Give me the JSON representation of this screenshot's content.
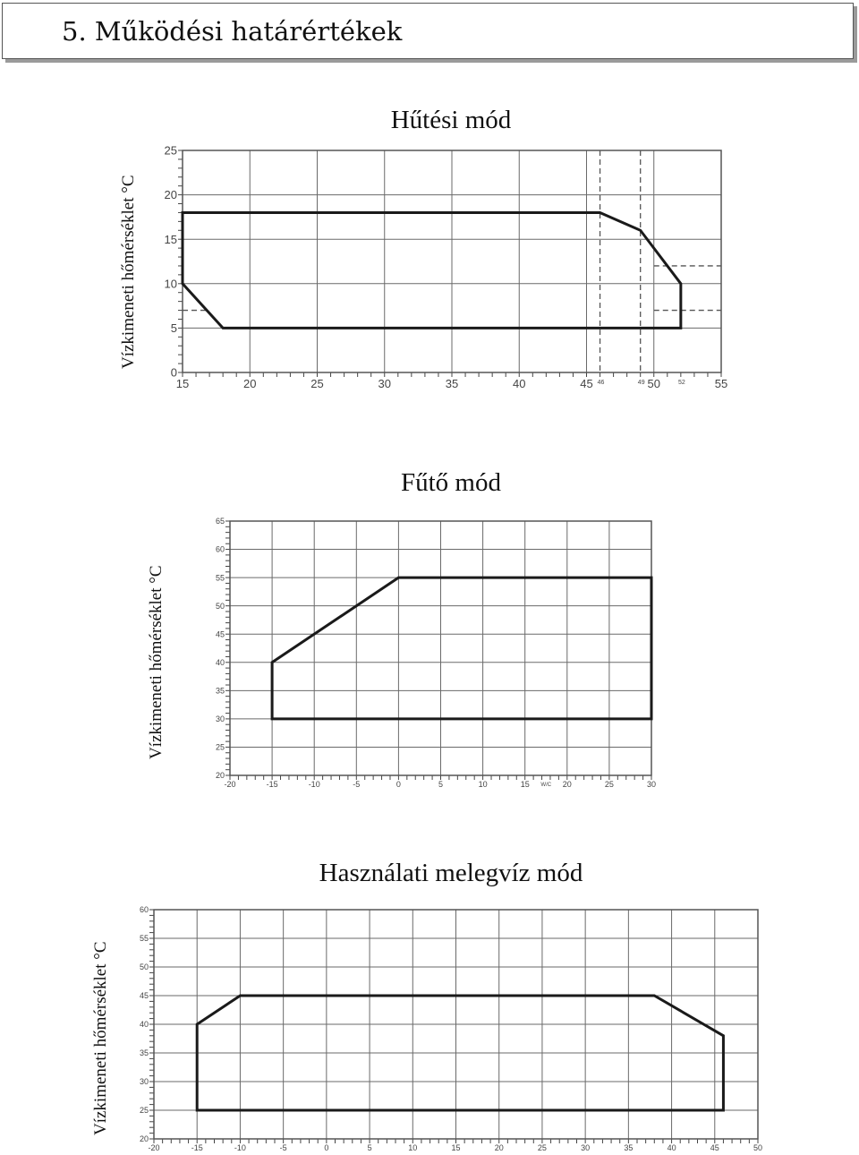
{
  "header": {
    "title": "5. Működési határértékek"
  },
  "chart_data": [
    {
      "type": "area",
      "title": "Hűtési mód",
      "ylabel": "Vízkimeneti hőmérséklet °C",
      "xlabel": "",
      "xlim": [
        15,
        55
      ],
      "ylim": [
        0,
        25
      ],
      "x_ticks": [
        15,
        20,
        25,
        30,
        35,
        40,
        45,
        50,
        55
      ],
      "y_ticks": [
        0,
        5,
        10,
        15,
        20,
        25
      ],
      "x_minor_labels": [
        46,
        49,
        52
      ],
      "grid": true,
      "polygon": [
        [
          15,
          18
        ],
        [
          46,
          18
        ],
        [
          49,
          16
        ],
        [
          52,
          10
        ],
        [
          52,
          5
        ],
        [
          18,
          5
        ],
        [
          15,
          10
        ]
      ],
      "dashed_vertical": [
        46,
        49
      ],
      "dashed_horizontal": [
        {
          "y": 12,
          "x_from": 50,
          "x_to": 55
        },
        {
          "y": 7,
          "x_from": 50,
          "x_to": 55
        },
        {
          "y": 7,
          "x_from": 15,
          "x_to": 17
        }
      ]
    },
    {
      "type": "area",
      "title": "Fűtő mód",
      "ylabel": "Vízkimeneti hőmérséklet °C",
      "xlabel": "",
      "xlim": [
        -20,
        30
      ],
      "ylim": [
        20,
        65
      ],
      "x_ticks": [
        -20,
        -15,
        -10,
        -5,
        0,
        5,
        10,
        15,
        20,
        25,
        30
      ],
      "y_ticks": [
        20,
        25,
        30,
        35,
        40,
        45,
        50,
        55,
        60,
        65
      ],
      "x_unit_label": "W/C",
      "grid": true,
      "polygon": [
        [
          -15,
          40
        ],
        [
          0,
          55
        ],
        [
          30,
          55
        ],
        [
          30,
          30
        ],
        [
          -15,
          30
        ]
      ]
    },
    {
      "type": "area",
      "title": "Használati melegvíz mód",
      "ylabel": "Vízkimeneti hőmérséklet °C",
      "xlabel": "",
      "xlim": [
        -20,
        50
      ],
      "ylim": [
        20,
        60
      ],
      "x_ticks": [
        -20,
        -15,
        -10,
        -5,
        0,
        5,
        10,
        15,
        20,
        25,
        30,
        35,
        40,
        45,
        50
      ],
      "y_ticks": [
        20,
        25,
        30,
        35,
        40,
        45,
        50,
        55,
        60
      ],
      "grid": true,
      "polygon": [
        [
          -15,
          40
        ],
        [
          -10,
          45
        ],
        [
          38,
          45
        ],
        [
          46,
          38
        ],
        [
          46,
          25
        ],
        [
          -15,
          25
        ]
      ]
    }
  ]
}
